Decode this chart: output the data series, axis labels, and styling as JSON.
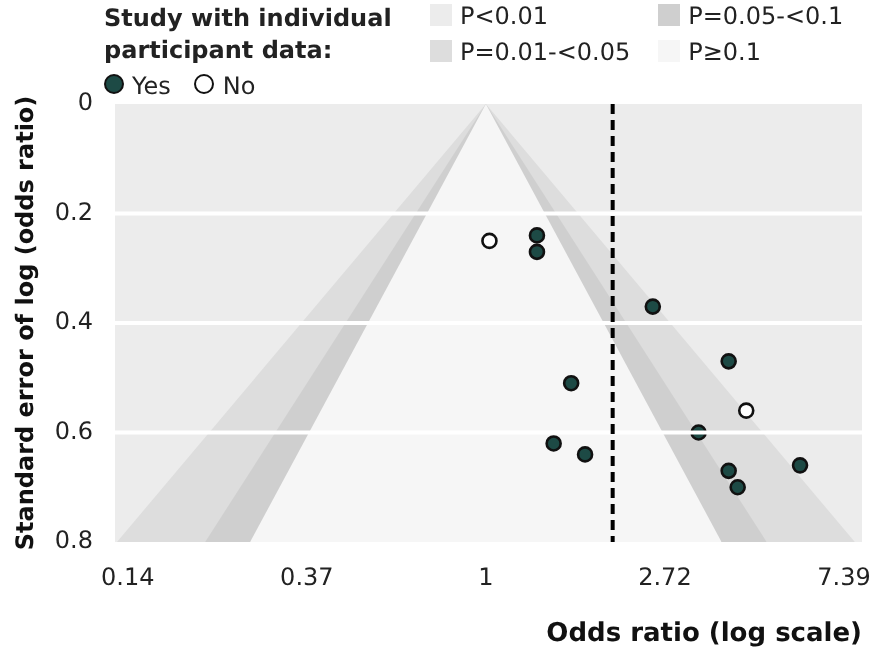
{
  "chart_data": {
    "type": "scatter",
    "xlabel": "Odds ratio (log scale)",
    "ylabel": "Standard error of log (odds ratio)",
    "legend_title": "Study with individual participant data:",
    "log": "x",
    "xlim": [
      0.126,
      8.17
    ],
    "ylim": [
      0.8,
      0
    ],
    "xticks": [
      {
        "value": 0.1353,
        "label": "0.14"
      },
      {
        "value": 0.3679,
        "label": "0.37"
      },
      1,
      {
        "value": 2.718,
        "label": "2.72"
      },
      {
        "value": 7.389,
        "label": "7.39"
      }
    ],
    "yticks": [
      0,
      0.2,
      0.4,
      0.6,
      0.8
    ],
    "grid": "y",
    "legend": "top",
    "bands": [
      {
        "axis": "x",
        "from": 0.126,
        "to": 8.17,
        "label": "P<0.01",
        "color": "#ececec"
      }
    ],
    "ref_lines": [
      {
        "axis": "x",
        "value": 2.03,
        "color": "#000000",
        "line_style": "dashed"
      }
    ],
    "series": [
      {
        "name": "P=0.01-<0.05",
        "type": "area",
        "color": "#dddddd",
        "x": [
          0.1274,
          1,
          7.85
        ],
        "values": [
          0.8,
          0,
          0.8
        ]
      },
      {
        "name": "P=0.05-<0.1",
        "type": "area",
        "color": "#cfcfcf",
        "x": [
          0.2085,
          1,
          4.797
        ],
        "values": [
          0.8,
          0,
          0.8
        ]
      },
      {
        "name": "P≥0.1",
        "type": "area",
        "color": "#f6f6f6",
        "x": [
          0.268,
          1,
          3.729
        ],
        "values": [
          0.8,
          0,
          0.8
        ]
      },
      {
        "name": "Yes",
        "type": "scatter",
        "marker": "circle",
        "color": "#1d4a45",
        "x": [
          1.33,
          1.33,
          2.54,
          3.88,
          1.61,
          3.28,
          1.46,
          1.74,
          5.78,
          3.88,
          4.08
        ],
        "values": [
          0.24,
          0.27,
          0.37,
          0.47,
          0.51,
          0.6,
          0.62,
          0.64,
          0.66,
          0.67,
          0.7
        ]
      },
      {
        "name": "No",
        "type": "scatter",
        "marker": "circle",
        "color": "#ffffff",
        "x": [
          1.02,
          4.28
        ],
        "values": [
          0.25,
          0.56
        ]
      }
    ]
  }
}
